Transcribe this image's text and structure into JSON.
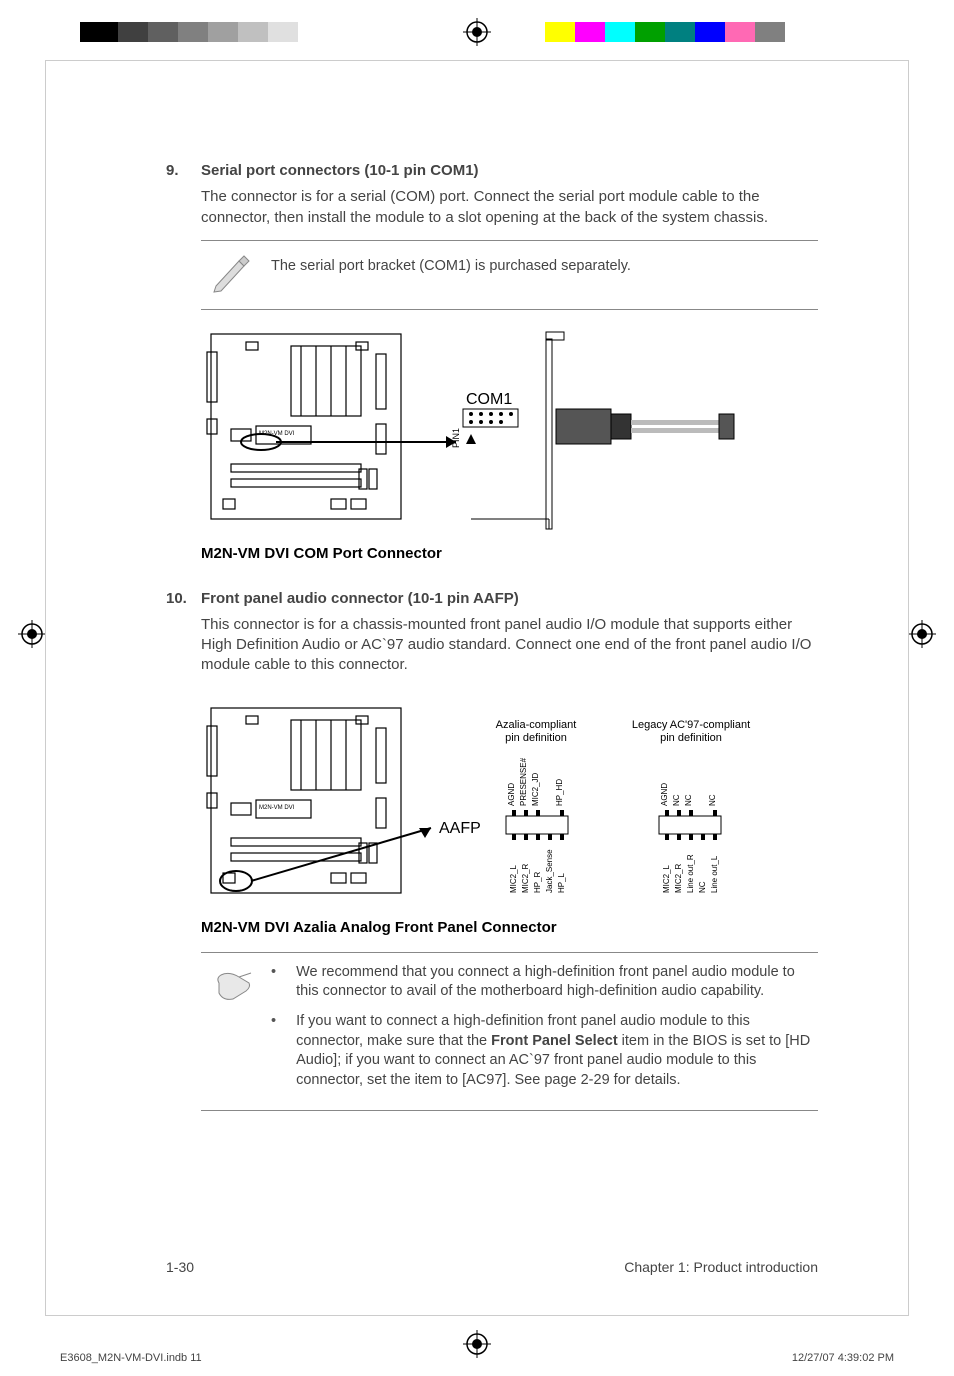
{
  "print": {
    "left_bar_colors": [
      "#000000",
      "#404040",
      "#606060",
      "#808080",
      "#a0a0a0",
      "#c0c0c0",
      "#e0e0e0"
    ],
    "left_bar_widths": [
      38,
      30,
      30,
      30,
      30,
      30,
      30
    ],
    "right_bar_colors": [
      "#ffff00",
      "#ff00ff",
      "#00ffff",
      "#00a000",
      "#008080",
      "#0000ff",
      "#ff69b4",
      "#808080"
    ],
    "right_bar_widths": [
      30,
      30,
      30,
      30,
      30,
      30,
      30,
      30
    ],
    "footer_file": "E3608_M2N-VM-DVI.indb   11",
    "footer_date": "12/27/07   4:39:02 PM"
  },
  "sections": [
    {
      "num": "9.",
      "title": "Serial port connectors (10-1 pin COM1)",
      "body": "The connector is for a serial (COM) port. Connect the serial port module cable to the connector, then install the module to a slot opening at the back of the system chassis.",
      "note_single": "The serial port bracket (COM1) is purchased separately.",
      "diagram": {
        "board_label": "M2N-VM DVI",
        "conn_label": "COM1",
        "pin_label": "PIN1",
        "caption": "M2N-VM DVI COM Port Connector"
      }
    },
    {
      "num": "10.",
      "title": "Front panel audio connector (10-1 pin AAFP)",
      "body": "This connector is for a chassis-mounted front panel audio I/O module that supports either High Definition Audio or AC`97 audio standard. Connect one end of the front panel audio I/O module cable to this connector.",
      "diagram": {
        "board_label": "M2N-VM DVI",
        "conn_label": "AAFP",
        "col1_title": "Azalia-compliant\npin definition",
        "col2_title": "Legacy AC'97-compliant\npin definition",
        "col1_top": [
          "AGND",
          "PRESENSE#",
          "MIC2_JD",
          "",
          "HP_HD"
        ],
        "col1_bot": [
          "MIC2_L",
          "MIC2_R",
          "HP_R",
          "Jack_Sense",
          "HP_L"
        ],
        "col2_top": [
          "AGND",
          "NC",
          "NC",
          "",
          "NC"
        ],
        "col2_bot": [
          "MIC2_L",
          "MIC2_R",
          "Line out_R",
          "NC",
          "Line out_L"
        ],
        "caption": "M2N-VM DVI Azalia Analog Front Panel Connector"
      },
      "notes": [
        "We recommend that you connect a high-definition front panel audio module to this connector to avail of the motherboard high-definition audio capability.",
        "If you want to connect a high-definition front panel audio module to this connector, make sure that the <b>Front Panel Select</b> item in the BIOS is set to [HD Audio]; if you want to connect an AC`97 front panel audio module to this connector, set the item to [AC97]. See page 2-29 for details."
      ]
    }
  ],
  "footer": {
    "page": "1-30",
    "chapter": "Chapter 1: Product introduction"
  }
}
